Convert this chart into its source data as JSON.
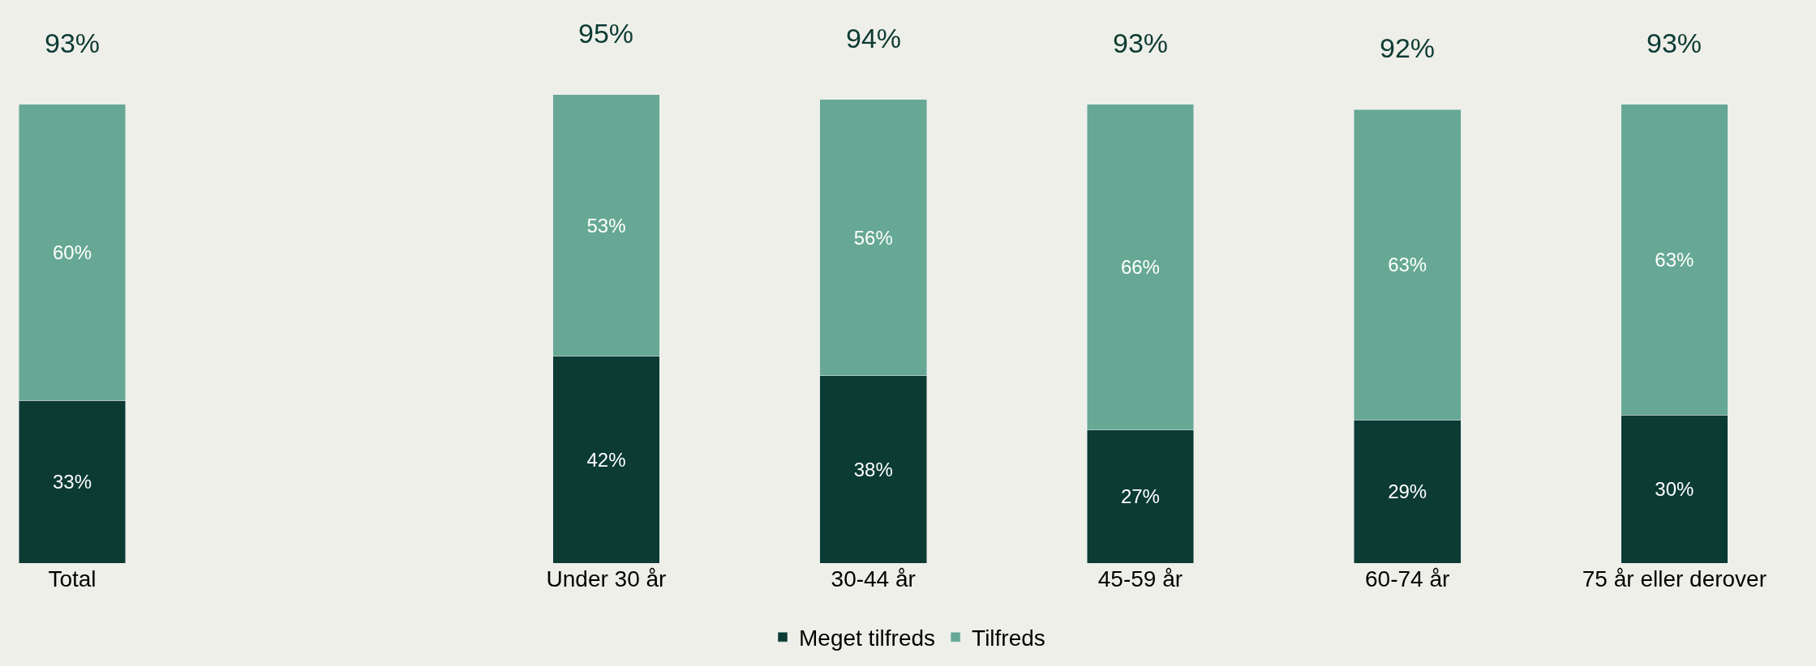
{
  "chart_data": {
    "type": "bar",
    "stacked": true,
    "categories": [
      "Total",
      null,
      "Under 30 år",
      "30-44 år",
      "45-59 år",
      "60-74 år",
      "75 år eller derover"
    ],
    "series": [
      {
        "name": "Meget tilfreds",
        "color": "#0b3b33",
        "values": [
          33,
          null,
          42,
          38,
          27,
          29,
          30
        ],
        "value_labels": [
          "33%",
          null,
          "42%",
          "38%",
          "27%",
          "29%",
          "30%"
        ]
      },
      {
        "name": "Tilfreds",
        "color": "#66a894",
        "values": [
          60,
          null,
          53,
          56,
          66,
          63,
          63
        ],
        "value_labels": [
          "60%",
          null,
          "53%",
          "56%",
          "66%",
          "63%",
          "63%"
        ]
      }
    ],
    "totals": [
      "93%",
      null,
      "95%",
      "94%",
      "93%",
      "92%",
      "93%"
    ],
    "legend": "bottom",
    "grid": false,
    "tick_labels": "x"
  }
}
